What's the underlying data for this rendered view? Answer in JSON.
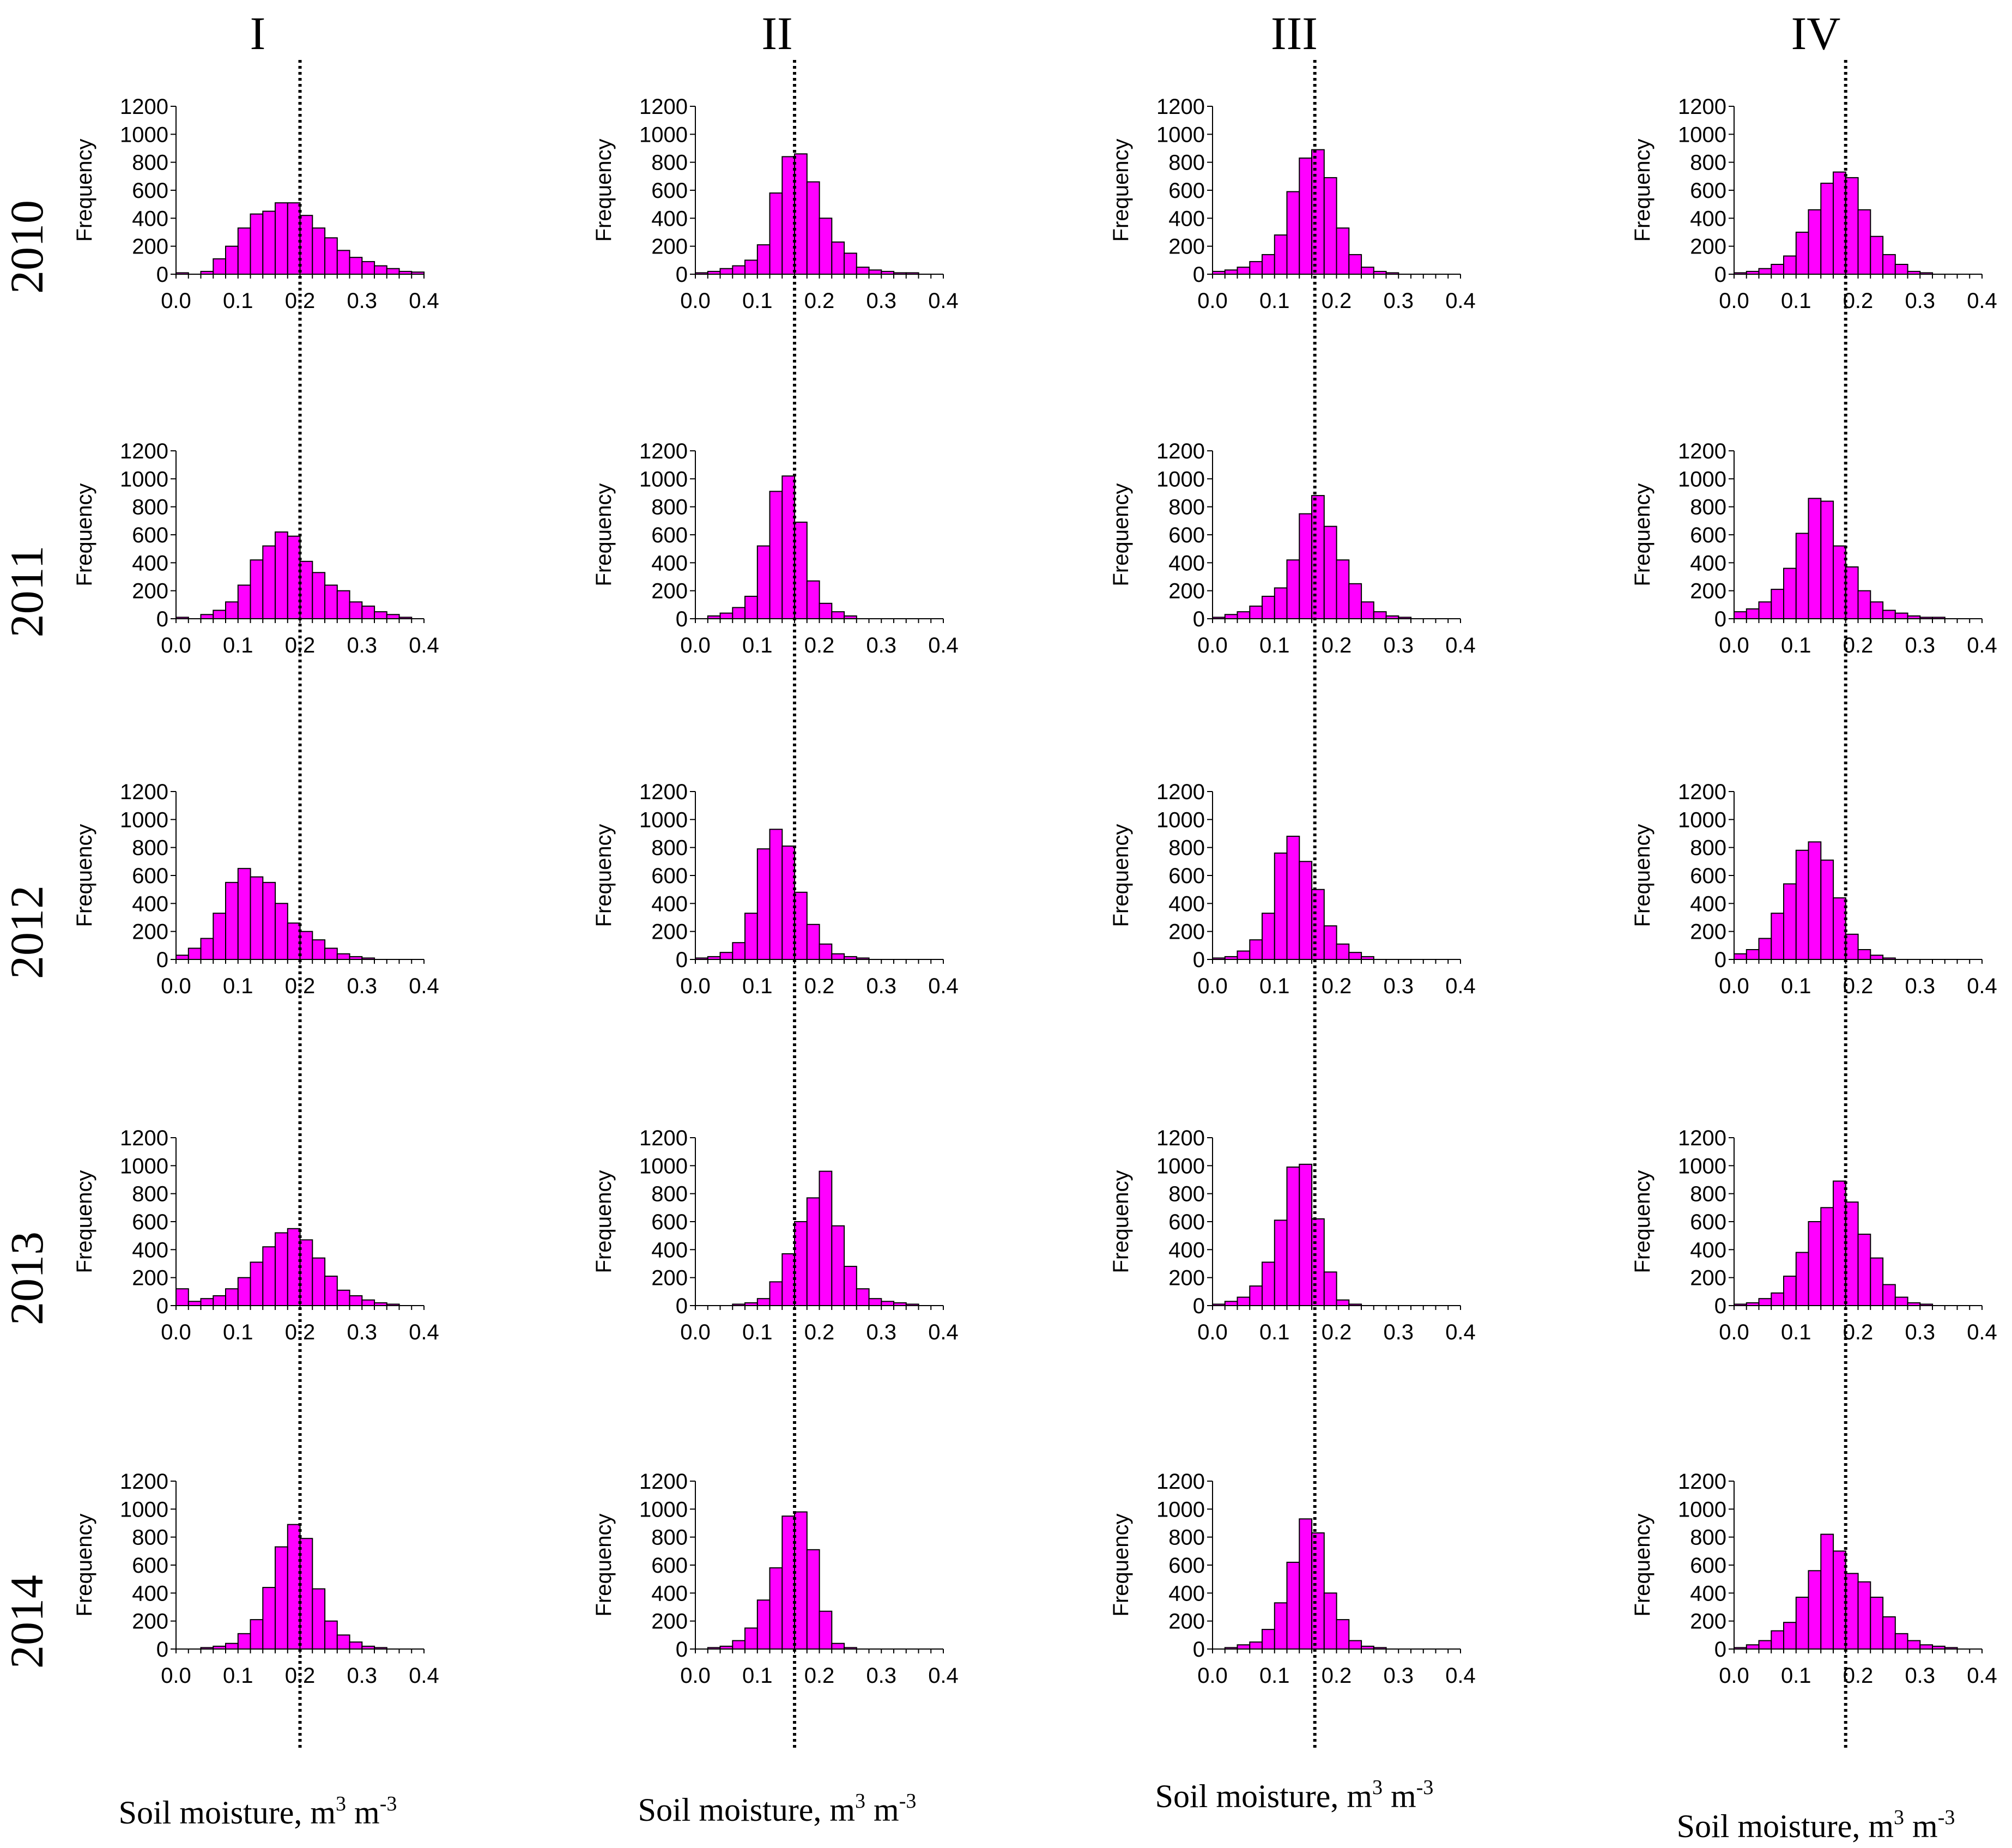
{
  "figure": {
    "columns": [
      "I",
      "II",
      "III",
      "IV"
    ],
    "rows": [
      "2010",
      "2011",
      "2012",
      "2013",
      "2014"
    ],
    "x_axis_label": "Soil moisture, m",
    "x_axis_unit_exp1": "3",
    "x_axis_unit_mid": " m",
    "x_axis_unit_exp2": "-3",
    "y_axis_label": "Frequency",
    "bar_color": "#ff00ff",
    "bar_edge_color": "#000000",
    "reference_lines": [
      0.2,
      0.16,
      0.165,
      0.18
    ]
  },
  "chart_data": {
    "type": "bar",
    "bin_width": 0.02,
    "x_range": [
      0.0,
      0.4
    ],
    "x_ticks": [
      "0.0",
      "0.1",
      "0.2",
      "0.3",
      "0.4"
    ],
    "y_range": [
      0,
      1200
    ],
    "y_ticks": [
      "0",
      "200",
      "400",
      "600",
      "800",
      "1000",
      "1200"
    ],
    "panels": [
      {
        "column": "I",
        "year": "2010",
        "reference": 0.2,
        "values": [
          10,
          0,
          20,
          110,
          200,
          330,
          430,
          450,
          510,
          510,
          420,
          330,
          260,
          170,
          120,
          90,
          60,
          40,
          20,
          15
        ]
      },
      {
        "column": "II",
        "year": "2010",
        "reference": 0.16,
        "values": [
          10,
          20,
          40,
          60,
          100,
          210,
          580,
          840,
          860,
          660,
          400,
          230,
          150,
          50,
          30,
          20,
          10,
          10,
          0,
          0
        ]
      },
      {
        "column": "III",
        "year": "2010",
        "reference": 0.165,
        "values": [
          20,
          30,
          50,
          90,
          140,
          280,
          590,
          830,
          890,
          690,
          330,
          140,
          50,
          20,
          10,
          0,
          0,
          0,
          0,
          0
        ]
      },
      {
        "column": "IV",
        "year": "2010",
        "reference": 0.18,
        "values": [
          10,
          20,
          40,
          70,
          130,
          300,
          460,
          650,
          730,
          690,
          460,
          270,
          140,
          70,
          20,
          10,
          0,
          0,
          0,
          0
        ]
      },
      {
        "column": "I",
        "year": "2011",
        "reference": 0.2,
        "values": [
          10,
          0,
          30,
          60,
          120,
          240,
          420,
          520,
          620,
          590,
          410,
          330,
          240,
          200,
          120,
          90,
          50,
          30,
          10,
          0
        ]
      },
      {
        "column": "II",
        "year": "2011",
        "reference": 0.16,
        "values": [
          0,
          20,
          40,
          80,
          160,
          520,
          910,
          1020,
          690,
          270,
          110,
          50,
          20,
          0,
          0,
          0,
          0,
          0,
          0,
          0
        ]
      },
      {
        "column": "III",
        "year": "2011",
        "reference": 0.165,
        "values": [
          10,
          30,
          50,
          90,
          160,
          220,
          420,
          750,
          880,
          660,
          420,
          250,
          120,
          50,
          20,
          10,
          0,
          0,
          0,
          0
        ]
      },
      {
        "column": "IV",
        "year": "2011",
        "reference": 0.18,
        "values": [
          50,
          70,
          120,
          210,
          360,
          610,
          860,
          840,
          520,
          370,
          200,
          120,
          60,
          40,
          20,
          10,
          10,
          0,
          0,
          0
        ]
      },
      {
        "column": "I",
        "year": "2012",
        "reference": 0.2,
        "values": [
          30,
          80,
          150,
          330,
          550,
          650,
          590,
          550,
          400,
          260,
          200,
          140,
          80,
          40,
          20,
          10,
          0,
          0,
          0,
          0
        ]
      },
      {
        "column": "II",
        "year": "2012",
        "reference": 0.16,
        "values": [
          10,
          20,
          50,
          120,
          330,
          790,
          930,
          810,
          480,
          250,
          110,
          40,
          20,
          10,
          0,
          0,
          0,
          0,
          0,
          0
        ]
      },
      {
        "column": "III",
        "year": "2012",
        "reference": 0.165,
        "values": [
          10,
          20,
          60,
          140,
          330,
          760,
          880,
          700,
          500,
          240,
          110,
          50,
          20,
          0,
          0,
          0,
          0,
          0,
          0,
          0
        ]
      },
      {
        "column": "IV",
        "year": "2012",
        "reference": 0.18,
        "values": [
          40,
          70,
          150,
          330,
          540,
          780,
          840,
          710,
          440,
          180,
          70,
          30,
          10,
          0,
          0,
          0,
          0,
          0,
          0,
          0
        ]
      },
      {
        "column": "I",
        "year": "2013",
        "reference": 0.2,
        "values": [
          120,
          30,
          50,
          70,
          120,
          200,
          310,
          420,
          520,
          550,
          470,
          340,
          210,
          110,
          70,
          40,
          20,
          10,
          0,
          0
        ]
      },
      {
        "column": "II",
        "year": "2013",
        "reference": 0.16,
        "values": [
          0,
          0,
          0,
          10,
          20,
          50,
          170,
          370,
          600,
          770,
          960,
          570,
          280,
          120,
          50,
          30,
          20,
          10,
          0,
          0
        ]
      },
      {
        "column": "III",
        "year": "2013",
        "reference": 0.165,
        "values": [
          10,
          30,
          60,
          140,
          310,
          610,
          990,
          1010,
          620,
          240,
          40,
          10,
          0,
          0,
          0,
          0,
          0,
          0,
          0,
          0
        ]
      },
      {
        "column": "IV",
        "year": "2013",
        "reference": 0.18,
        "values": [
          10,
          20,
          50,
          90,
          210,
          380,
          600,
          700,
          890,
          740,
          510,
          340,
          150,
          60,
          20,
          10,
          0,
          0,
          0,
          0
        ]
      },
      {
        "column": "I",
        "year": "2014",
        "reference": 0.2,
        "values": [
          0,
          0,
          10,
          20,
          40,
          110,
          210,
          440,
          730,
          890,
          790,
          430,
          200,
          100,
          50,
          20,
          10,
          0,
          0,
          0
        ]
      },
      {
        "column": "II",
        "year": "2014",
        "reference": 0.16,
        "values": [
          0,
          10,
          20,
          60,
          150,
          350,
          580,
          950,
          980,
          710,
          270,
          40,
          10,
          0,
          0,
          0,
          0,
          0,
          0,
          0
        ]
      },
      {
        "column": "III",
        "year": "2014",
        "reference": 0.165,
        "values": [
          0,
          10,
          30,
          50,
          140,
          330,
          620,
          930,
          830,
          400,
          210,
          60,
          20,
          10,
          0,
          0,
          0,
          0,
          0,
          0
        ]
      },
      {
        "column": "IV",
        "year": "2014",
        "reference": 0.18,
        "values": [
          10,
          30,
          60,
          130,
          190,
          370,
          560,
          820,
          700,
          540,
          480,
          370,
          230,
          110,
          60,
          30,
          20,
          10,
          0,
          0
        ]
      }
    ]
  }
}
